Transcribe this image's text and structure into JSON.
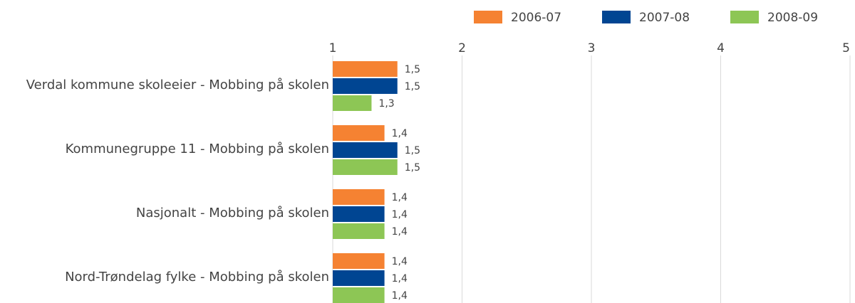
{
  "chart_data": {
    "type": "bar",
    "orientation": "horizontal",
    "categories": [
      "Verdal kommune skoleeier - Mobbing på skolen",
      "Kommunegruppe 11 - Mobbing på skolen",
      "Nasjonalt - Mobbing på skolen",
      "Nord-Trøndelag fylke - Mobbing på skolen"
    ],
    "series": [
      {
        "name": "2006-07",
        "color": "#f58232",
        "values": [
          1.5,
          1.4,
          1.4,
          1.4
        ],
        "value_labels": [
          "1,5",
          "1,4",
          "1,4",
          "1,4"
        ]
      },
      {
        "name": "2007-08",
        "color": "#004592",
        "values": [
          1.5,
          1.5,
          1.4,
          1.4
        ],
        "value_labels": [
          "1,5",
          "1,5",
          "1,4",
          "1,4"
        ]
      },
      {
        "name": "2008-09",
        "color": "#8dc655",
        "values": [
          1.3,
          1.5,
          1.4,
          1.4
        ],
        "value_labels": [
          "1,3",
          "1,5",
          "1,4",
          "1,4"
        ]
      }
    ],
    "xlim": [
      1,
      5
    ],
    "xticks": [
      1,
      2,
      3,
      4,
      5
    ],
    "grid": true,
    "legend": "top-right"
  }
}
